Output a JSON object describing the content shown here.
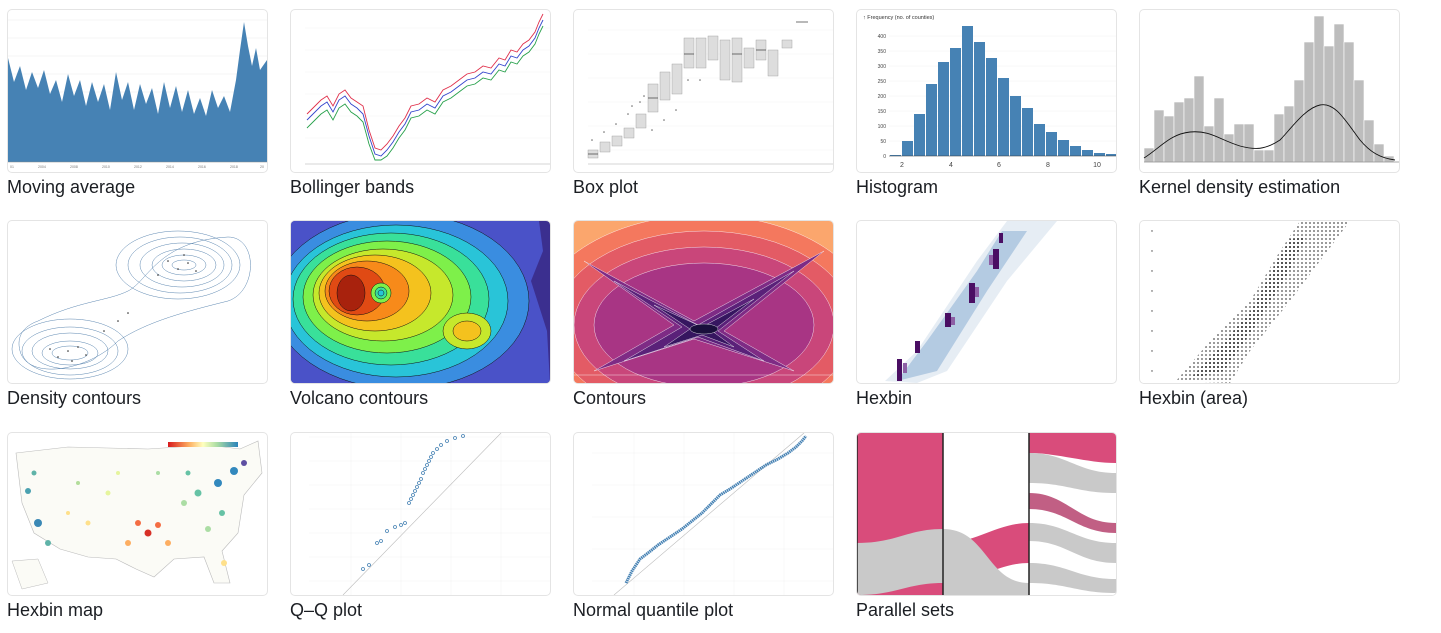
{
  "gallery": {
    "items": [
      {
        "label": "Moving average",
        "preview": "area-chart-thumbnail"
      },
      {
        "label": "Bollinger bands",
        "preview": "line-chart-thumbnail"
      },
      {
        "label": "Box plot",
        "preview": "box-plot-thumbnail"
      },
      {
        "label": "Histogram",
        "preview": "histogram-thumbnail"
      },
      {
        "label": "Kernel density estimation",
        "preview": "density-histogram-thumbnail"
      },
      {
        "label": "Density contours",
        "preview": "contour-lines-thumbnail"
      },
      {
        "label": "Volcano contours",
        "preview": "filled-contours-thumbnail"
      },
      {
        "label": "Contours",
        "preview": "filled-contours-thumbnail"
      },
      {
        "label": "Hexbin",
        "preview": "hexbin-thumbnail"
      },
      {
        "label": "Hexbin (area)",
        "preview": "hexbin-thumbnail"
      },
      {
        "label": "Hexbin map",
        "preview": "map-thumbnail"
      },
      {
        "label": "Q–Q plot",
        "preview": "scatter-thumbnail"
      },
      {
        "label": "Normal quantile plot",
        "preview": "scatter-thumbnail"
      },
      {
        "label": "Parallel sets",
        "preview": "sankey-thumbnail"
      }
    ]
  },
  "colors": {
    "steelblue": "#4682b4",
    "histogram_bar": "#4682b4",
    "kde_bar": "#bdbdbd",
    "box_fill": "#dddddd",
    "parallel_sets_pink": "#d94c7b",
    "parallel_sets_gray": "#c9c9c9",
    "hexbin_purple": "#4a0e63",
    "card_border": "#e4e4e4",
    "caption_text": "#1b1e23"
  },
  "histogram": {
    "y_axis_label": "↑ Frequency (no. of counties)",
    "y_ticks": [
      "400",
      "350",
      "300",
      "250",
      "200",
      "150",
      "100",
      "50",
      "0"
    ],
    "x_ticks": [
      "2",
      "4",
      "6",
      "8",
      "10"
    ]
  }
}
